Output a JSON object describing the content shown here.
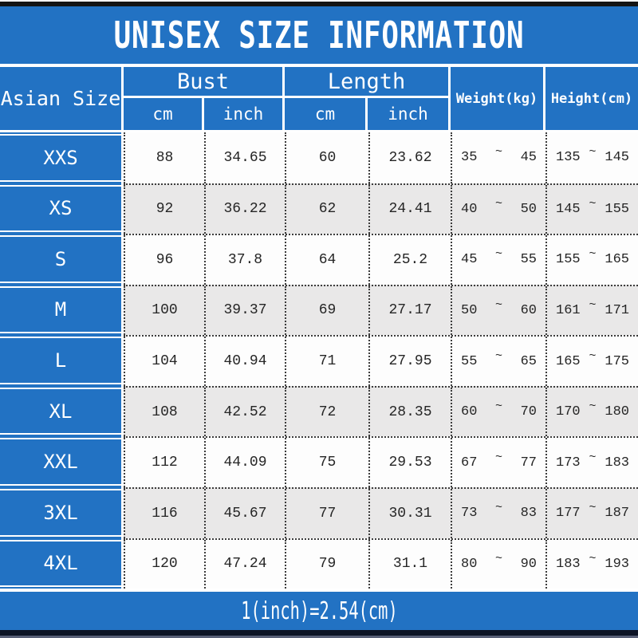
{
  "title": "UNISEX SIZE INFORMATION",
  "colors": {
    "blue": "#2272c3",
    "row_shaded": "#e9e8e8",
    "row_plain": "#fdfdfd",
    "navy_bar": "#0d1425"
  },
  "header": {
    "size_col": "Asian Size",
    "bust": {
      "label": "Bust",
      "sub_cm": "cm",
      "sub_inch": "inch"
    },
    "length": {
      "label": "Length",
      "sub_cm": "cm",
      "sub_inch": "inch"
    },
    "weight": "Weight(kg)",
    "height": "Height(cm)"
  },
  "tilde": "~",
  "rows": [
    {
      "size": "XXS",
      "bust_cm": "88",
      "bust_in": "34.65",
      "len_cm": "60",
      "len_in": "23.62",
      "w_min": "35",
      "w_max": "45",
      "h_min": "135",
      "h_max": "145",
      "shaded": false
    },
    {
      "size": "XS",
      "bust_cm": "92",
      "bust_in": "36.22",
      "len_cm": "62",
      "len_in": "24.41",
      "w_min": "40",
      "w_max": "50",
      "h_min": "145",
      "h_max": "155",
      "shaded": true
    },
    {
      "size": "S",
      "bust_cm": "96",
      "bust_in": "37.8",
      "len_cm": "64",
      "len_in": "25.2",
      "w_min": "45",
      "w_max": "55",
      "h_min": "155",
      "h_max": "165",
      "shaded": false
    },
    {
      "size": "M",
      "bust_cm": "100",
      "bust_in": "39.37",
      "len_cm": "69",
      "len_in": "27.17",
      "w_min": "50",
      "w_max": "60",
      "h_min": "161",
      "h_max": "171",
      "shaded": true
    },
    {
      "size": "L",
      "bust_cm": "104",
      "bust_in": "40.94",
      "len_cm": "71",
      "len_in": "27.95",
      "w_min": "55",
      "w_max": "65",
      "h_min": "165",
      "h_max": "175",
      "shaded": false
    },
    {
      "size": "XL",
      "bust_cm": "108",
      "bust_in": "42.52",
      "len_cm": "72",
      "len_in": "28.35",
      "w_min": "60",
      "w_max": "70",
      "h_min": "170",
      "h_max": "180",
      "shaded": true
    },
    {
      "size": "XXL",
      "bust_cm": "112",
      "bust_in": "44.09",
      "len_cm": "75",
      "len_in": "29.53",
      "w_min": "67",
      "w_max": "77",
      "h_min": "173",
      "h_max": "183",
      "shaded": false
    },
    {
      "size": "3XL",
      "bust_cm": "116",
      "bust_in": "45.67",
      "len_cm": "77",
      "len_in": "30.31",
      "w_min": "73",
      "w_max": "83",
      "h_min": "177",
      "h_max": "187",
      "shaded": true
    },
    {
      "size": "4XL",
      "bust_cm": "120",
      "bust_in": "47.24",
      "len_cm": "79",
      "len_in": "31.1",
      "w_min": "80",
      "w_max": "90",
      "h_min": "183",
      "h_max": "193",
      "shaded": false
    }
  ],
  "footer": "1(inch)=2.54(cm)"
}
